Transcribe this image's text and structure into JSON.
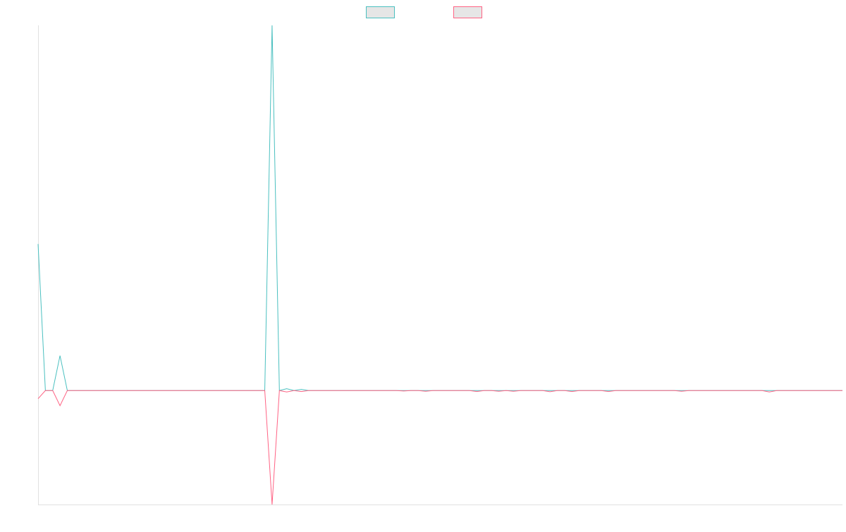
{
  "chart_data": {
    "type": "line",
    "title": "",
    "xlabel": "",
    "ylabel": "",
    "grid": false,
    "legend_position": "top-center",
    "x_count": 111,
    "series": [
      {
        "name": "",
        "color": "#4bc0c0",
        "legend_fill": "#e6e6e6",
        "values": [
          0.63,
          0.0,
          0.0,
          0.15,
          0.0,
          0.0,
          0.0,
          0.0,
          0.0,
          0.0,
          0.0,
          0.0,
          0.0,
          0.0,
          0.0,
          0.0,
          0.0,
          0.0,
          0.0,
          0.0,
          0.0,
          0.0,
          0.0,
          0.0,
          0.0,
          0.0,
          0.0,
          0.0,
          0.0,
          0.0,
          0.0,
          0.0,
          1.57,
          0.0,
          0.008,
          0.0,
          0.005,
          0.0,
          0.0,
          0.0,
          0.0,
          0.0,
          0.0,
          0.0,
          0.0,
          0.0,
          0.0,
          0.0,
          0.0,
          0.0,
          0.0,
          0.0,
          0.0,
          0.0,
          0.0,
          0.0,
          0.0,
          0.0,
          0.0,
          0.0,
          0.0,
          0.0,
          0.0,
          0.0,
          0.0,
          0.0,
          0.0,
          0.0,
          0.0,
          0.0,
          0.0,
          0.0,
          0.0,
          0.0,
          0.0,
          0.0,
          0.0,
          0.0,
          0.0,
          0.0,
          0.0,
          0.0,
          0.0,
          0.0,
          0.0,
          0.0,
          0.0,
          0.0,
          0.0,
          0.0,
          0.0,
          0.0,
          0.0,
          0.0,
          0.0,
          0.0,
          0.0,
          0.0,
          0.0,
          0.0,
          0.0,
          0.0,
          0.0,
          0.0,
          0.0,
          0.0,
          0.0,
          0.0,
          0.0,
          0.0,
          0.0
        ]
      },
      {
        "name": "",
        "color": "#ff6384",
        "legend_fill": "#e6e6e6",
        "values": [
          -0.035,
          0.0,
          0.0,
          -0.065,
          0.0,
          0.0,
          0.0,
          0.0,
          0.0,
          0.0,
          0.0,
          0.0,
          0.0,
          0.0,
          0.0,
          0.0,
          0.0,
          0.0,
          0.0,
          0.0,
          0.0,
          0.0,
          0.0,
          0.0,
          0.0,
          0.0,
          0.0,
          0.0,
          0.0,
          0.0,
          0.0,
          0.0,
          -0.49,
          0.0,
          -0.006,
          0.0,
          -0.004,
          0.0,
          0.0,
          0.0,
          0.0,
          0.0,
          0.0,
          0.0,
          0.0,
          0.0,
          0.0,
          0.0,
          0.0,
          0.0,
          -0.002,
          0.0,
          0.0,
          -0.003,
          0.0,
          0.0,
          0.0,
          0.0,
          0.0,
          0.0,
          -0.004,
          0.0,
          0.0,
          -0.003,
          0.0,
          -0.003,
          0.0,
          0.0,
          0.0,
          0.0,
          -0.005,
          0.0,
          0.0,
          -0.004,
          0.0,
          0.0,
          0.0,
          0.0,
          -0.004,
          0.0,
          0.0,
          0.0,
          0.0,
          0.0,
          0.0,
          0.0,
          0.0,
          0.0,
          -0.003,
          0.0,
          0.0,
          0.0,
          0.0,
          0.0,
          0.0,
          0.0,
          0.0,
          0.0,
          0.0,
          0.0,
          -0.006,
          0.0,
          0.0,
          0.0,
          0.0,
          0.0,
          0.0,
          0.0,
          0.0,
          0.0,
          0.0
        ]
      }
    ],
    "ylim": [
      -0.49,
      1.57
    ]
  }
}
